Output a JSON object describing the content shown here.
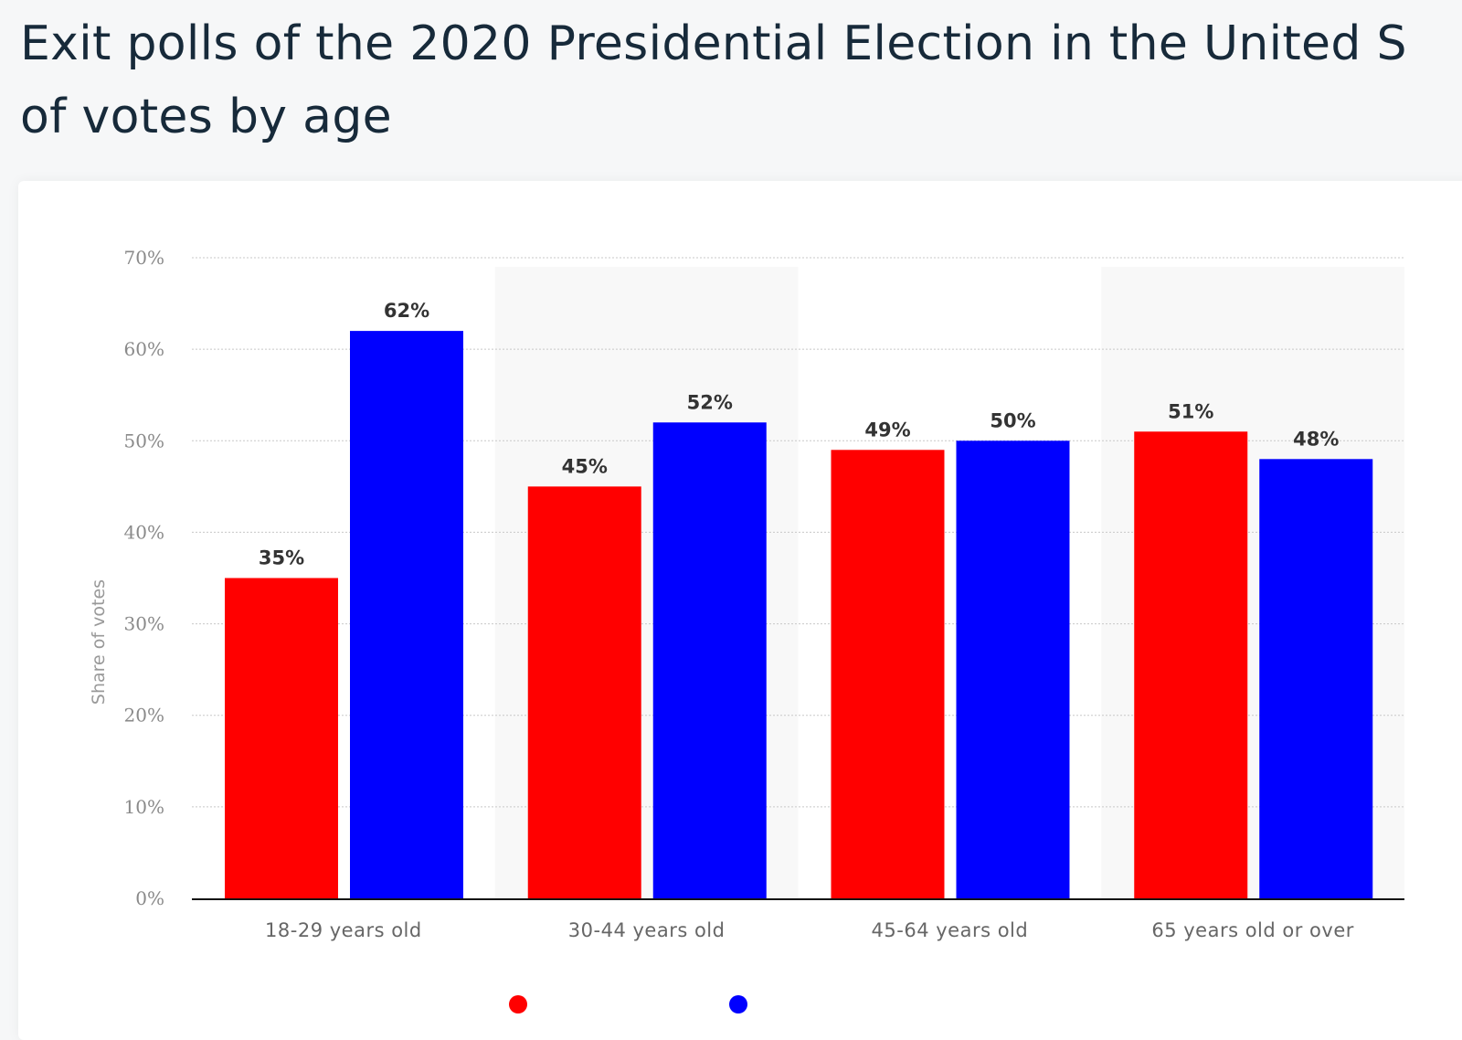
{
  "title_lines": [
    "Exit polls of the 2020 Presidential Election in the United S",
    "of votes by age"
  ],
  "chart_data": {
    "type": "bar",
    "ylabel": "Share of votes",
    "xlabel": "",
    "ylim": [
      0,
      70
    ],
    "yticks": [
      0,
      10,
      20,
      30,
      40,
      50,
      60,
      70
    ],
    "ytick_labels": [
      "0%",
      "10%",
      "20%",
      "30%",
      "40%",
      "50%",
      "60%",
      "70%"
    ],
    "categories": [
      "18-29 years old",
      "30-44 years old",
      "45-64 years old",
      "65 years old or over"
    ],
    "series": [
      {
        "color": "#ff0000",
        "values": [
          35,
          45,
          49,
          51
        ],
        "labels": [
          "35%",
          "45%",
          "49%",
          "51%"
        ]
      },
      {
        "color": "#0000ff",
        "values": [
          62,
          52,
          50,
          48
        ],
        "labels": [
          "62%",
          "52%",
          "50%",
          "48%"
        ]
      }
    ],
    "grid": true,
    "legend": "bottom"
  }
}
